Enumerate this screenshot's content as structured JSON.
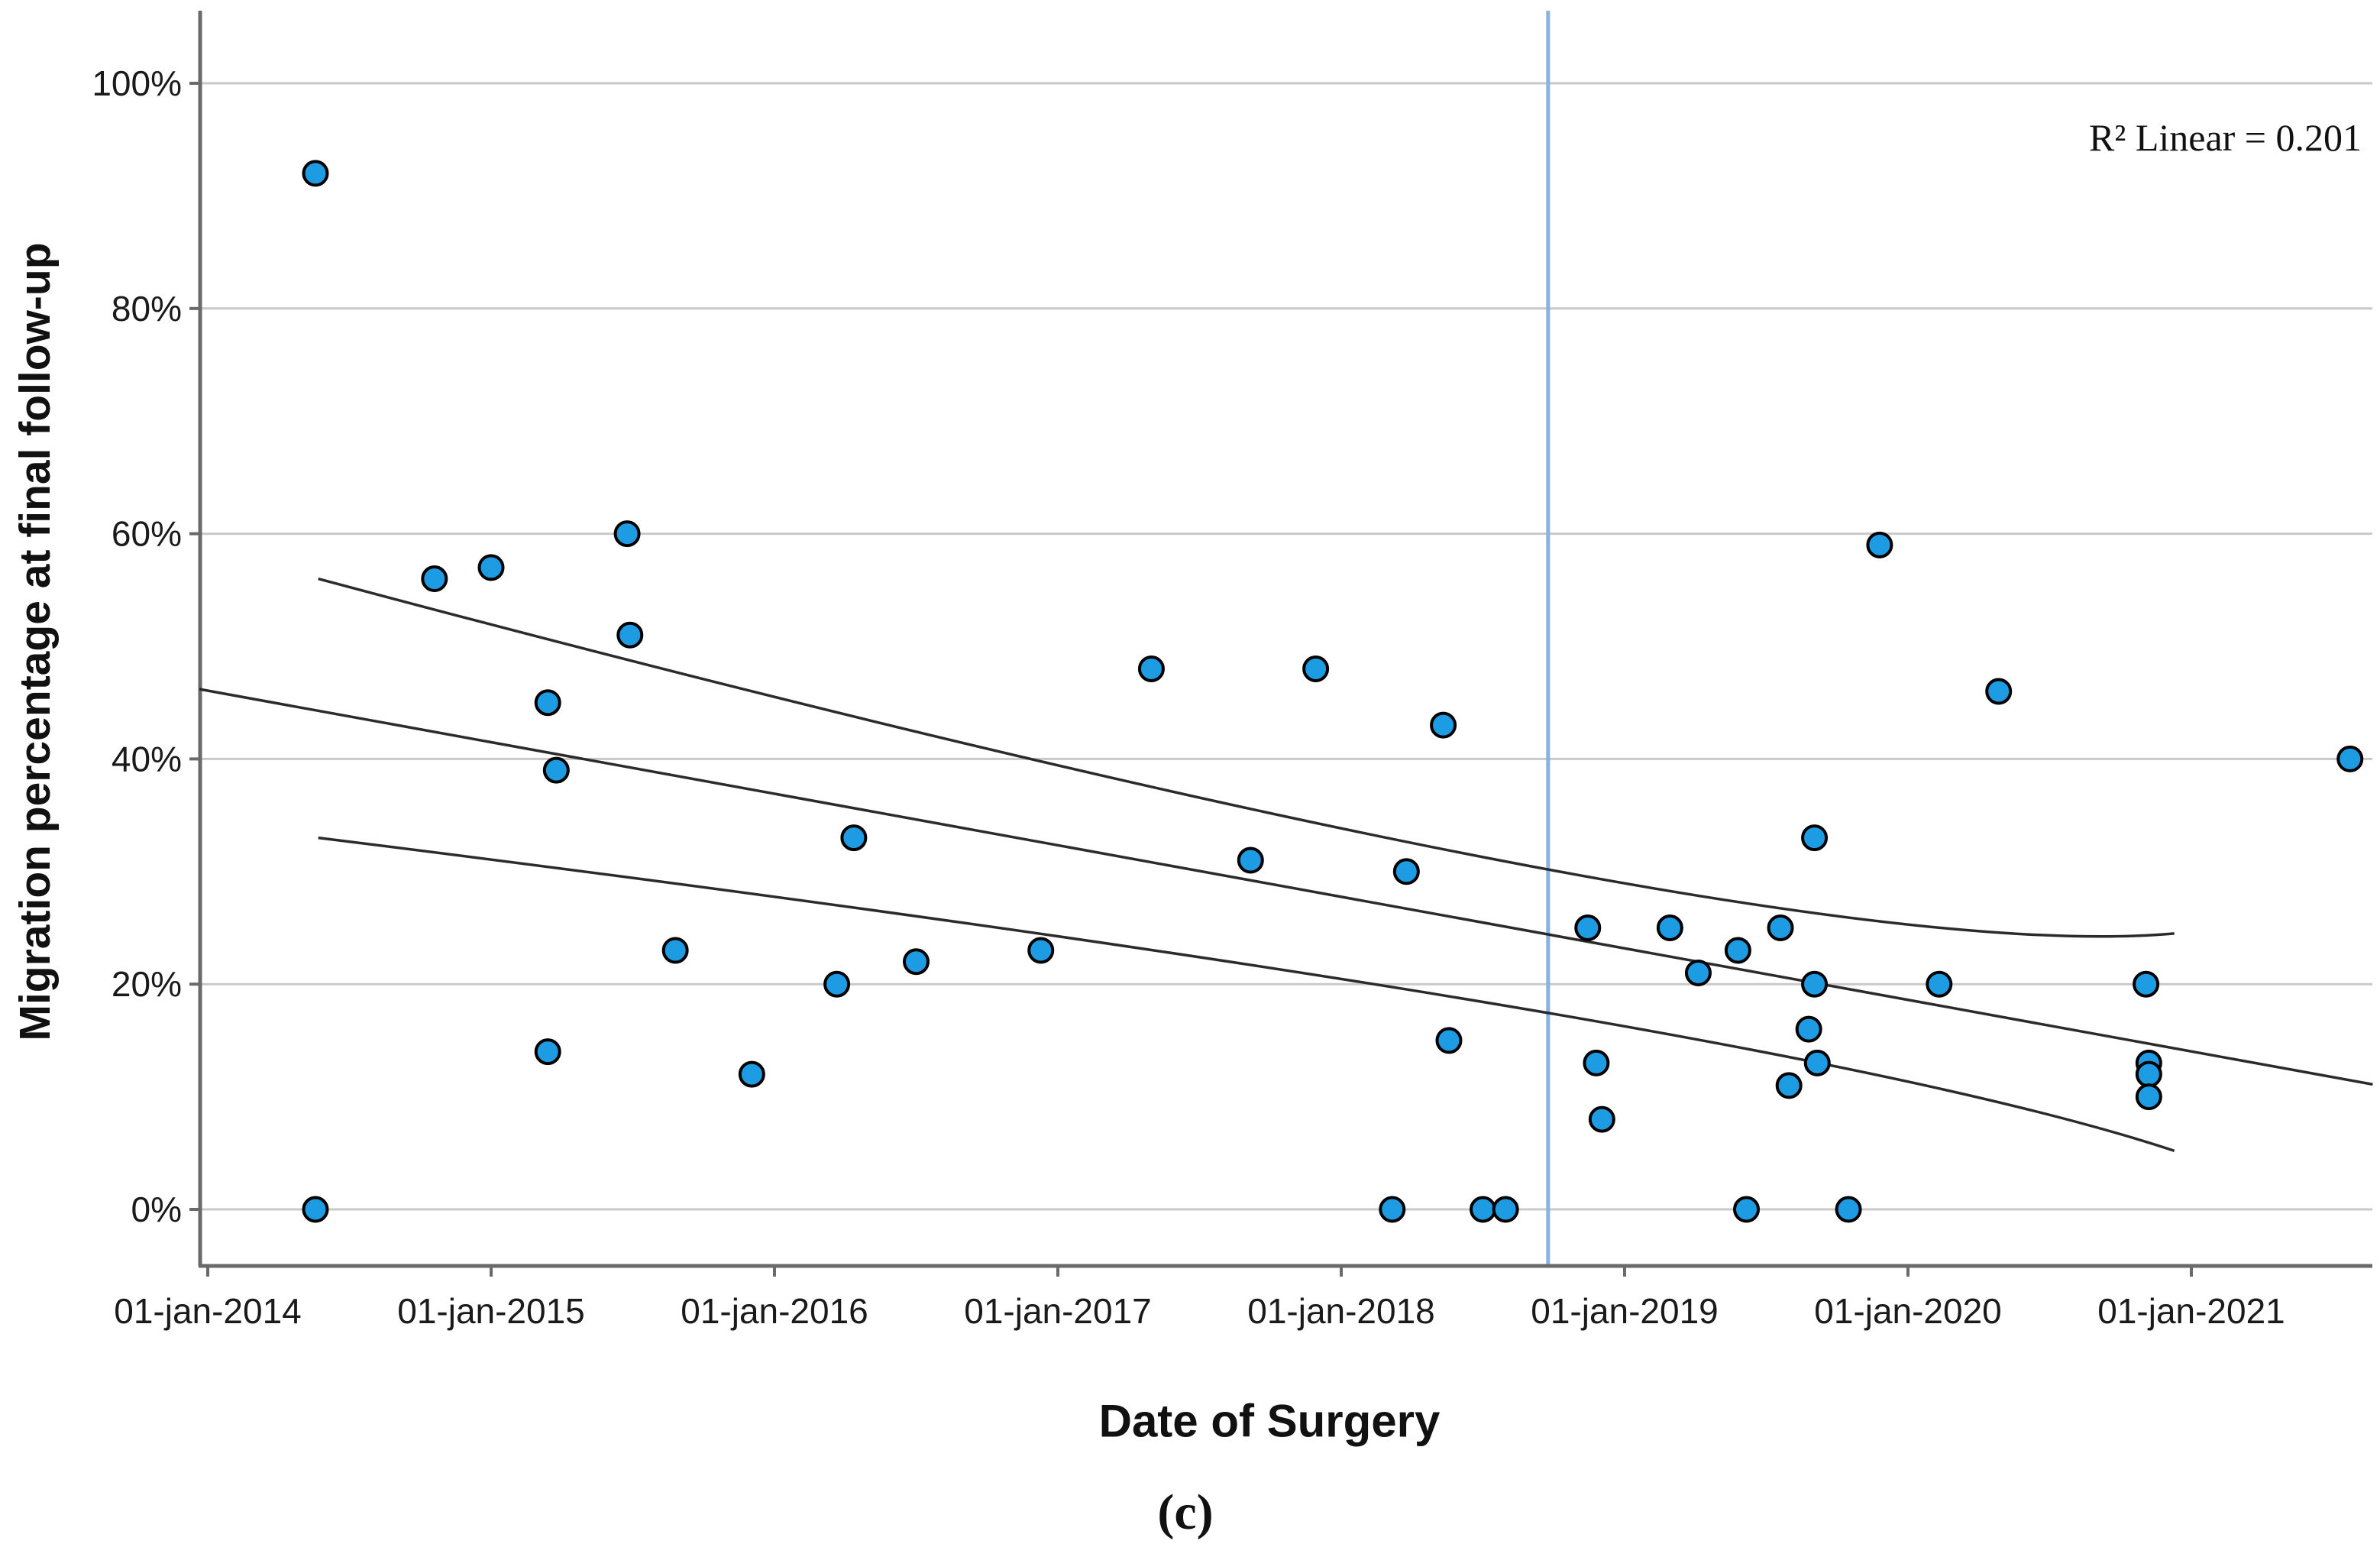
{
  "figure": {
    "r_squared_annotation": "R² Linear = 0.201",
    "panel_caption": "(c)"
  },
  "chart_data": {
    "type": "scatter",
    "title": "",
    "xlabel": "Date of Surgery",
    "ylabel": "Migration percentage at final follow-up",
    "legend": "none",
    "grid": "horizontal",
    "annotation": "R² Linear = 0.201",
    "annotation_position": "top-right",
    "x_ticks": [
      2014,
      2015,
      2016,
      2017,
      2018,
      2019,
      2020,
      2021
    ],
    "x_tick_labels": [
      "01-jan-2014",
      "01-jan-2015",
      "01-jan-2016",
      "01-jan-2017",
      "01-jan-2018",
      "01-jan-2019",
      "01-jan-2020",
      "01-jan-2021"
    ],
    "y_ticks": [
      0,
      20,
      40,
      60,
      80,
      100
    ],
    "y_tick_labels": [
      "0%",
      "20%",
      "40%",
      "60%",
      "80%",
      "100%"
    ],
    "xlim": [
      2013.97,
      2021.67
    ],
    "ylim": [
      -5,
      107
    ],
    "reference_line_x": 2018.73,
    "points": [
      [
        2014.38,
        92
      ],
      [
        2014.38,
        0
      ],
      [
        2014.8,
        56
      ],
      [
        2015.0,
        57
      ],
      [
        2015.2,
        45
      ],
      [
        2015.2,
        14
      ],
      [
        2015.23,
        39
      ],
      [
        2015.48,
        60
      ],
      [
        2015.49,
        51
      ],
      [
        2015.65,
        23
      ],
      [
        2015.92,
        12
      ],
      [
        2016.22,
        20
      ],
      [
        2016.28,
        33
      ],
      [
        2016.5,
        22
      ],
      [
        2016.94,
        23
      ],
      [
        2017.33,
        48
      ],
      [
        2017.68,
        31
      ],
      [
        2017.91,
        48
      ],
      [
        2018.18,
        0
      ],
      [
        2018.23,
        30
      ],
      [
        2018.36,
        43
      ],
      [
        2018.38,
        15
      ],
      [
        2018.5,
        0
      ],
      [
        2018.58,
        0
      ],
      [
        2018.87,
        25
      ],
      [
        2018.9,
        13
      ],
      [
        2018.92,
        8
      ],
      [
        2019.16,
        25
      ],
      [
        2019.26,
        21
      ],
      [
        2019.4,
        23
      ],
      [
        2019.43,
        0
      ],
      [
        2019.55,
        25
      ],
      [
        2019.58,
        11
      ],
      [
        2019.65,
        16
      ],
      [
        2019.68,
        13
      ],
      [
        2019.67,
        33
      ],
      [
        2019.67,
        20
      ],
      [
        2019.79,
        0
      ],
      [
        2019.9,
        59
      ],
      [
        2020.11,
        20
      ],
      [
        2020.32,
        46
      ],
      [
        2020.84,
        20
      ],
      [
        2020.85,
        13
      ],
      [
        2020.85,
        12
      ],
      [
        2020.85,
        10
      ],
      [
        2021.56,
        40
      ]
    ],
    "regression": {
      "fit_line": [
        [
          2013.97,
          46.2
        ],
        [
          2021.64,
          11.1
        ]
      ],
      "ci_upper": [
        [
          2014.39,
          56.0
        ],
        [
          2018.6,
          30.8
        ],
        [
          2020.94,
          24.5
        ]
      ],
      "ci_lower": [
        [
          2014.39,
          33.0
        ],
        [
          2018.6,
          18.0
        ],
        [
          2020.94,
          5.2
        ]
      ]
    },
    "colors": {
      "point_fill": "#1e9ce3",
      "point_stroke": "#000000",
      "grid": "#c9c9c9",
      "axis": "#6a6a6a",
      "tick_text": "#1a1a1a",
      "regression_line": "#2b2b2b",
      "reference_line": "#8ab1e4",
      "background": "#ffffff"
    }
  }
}
